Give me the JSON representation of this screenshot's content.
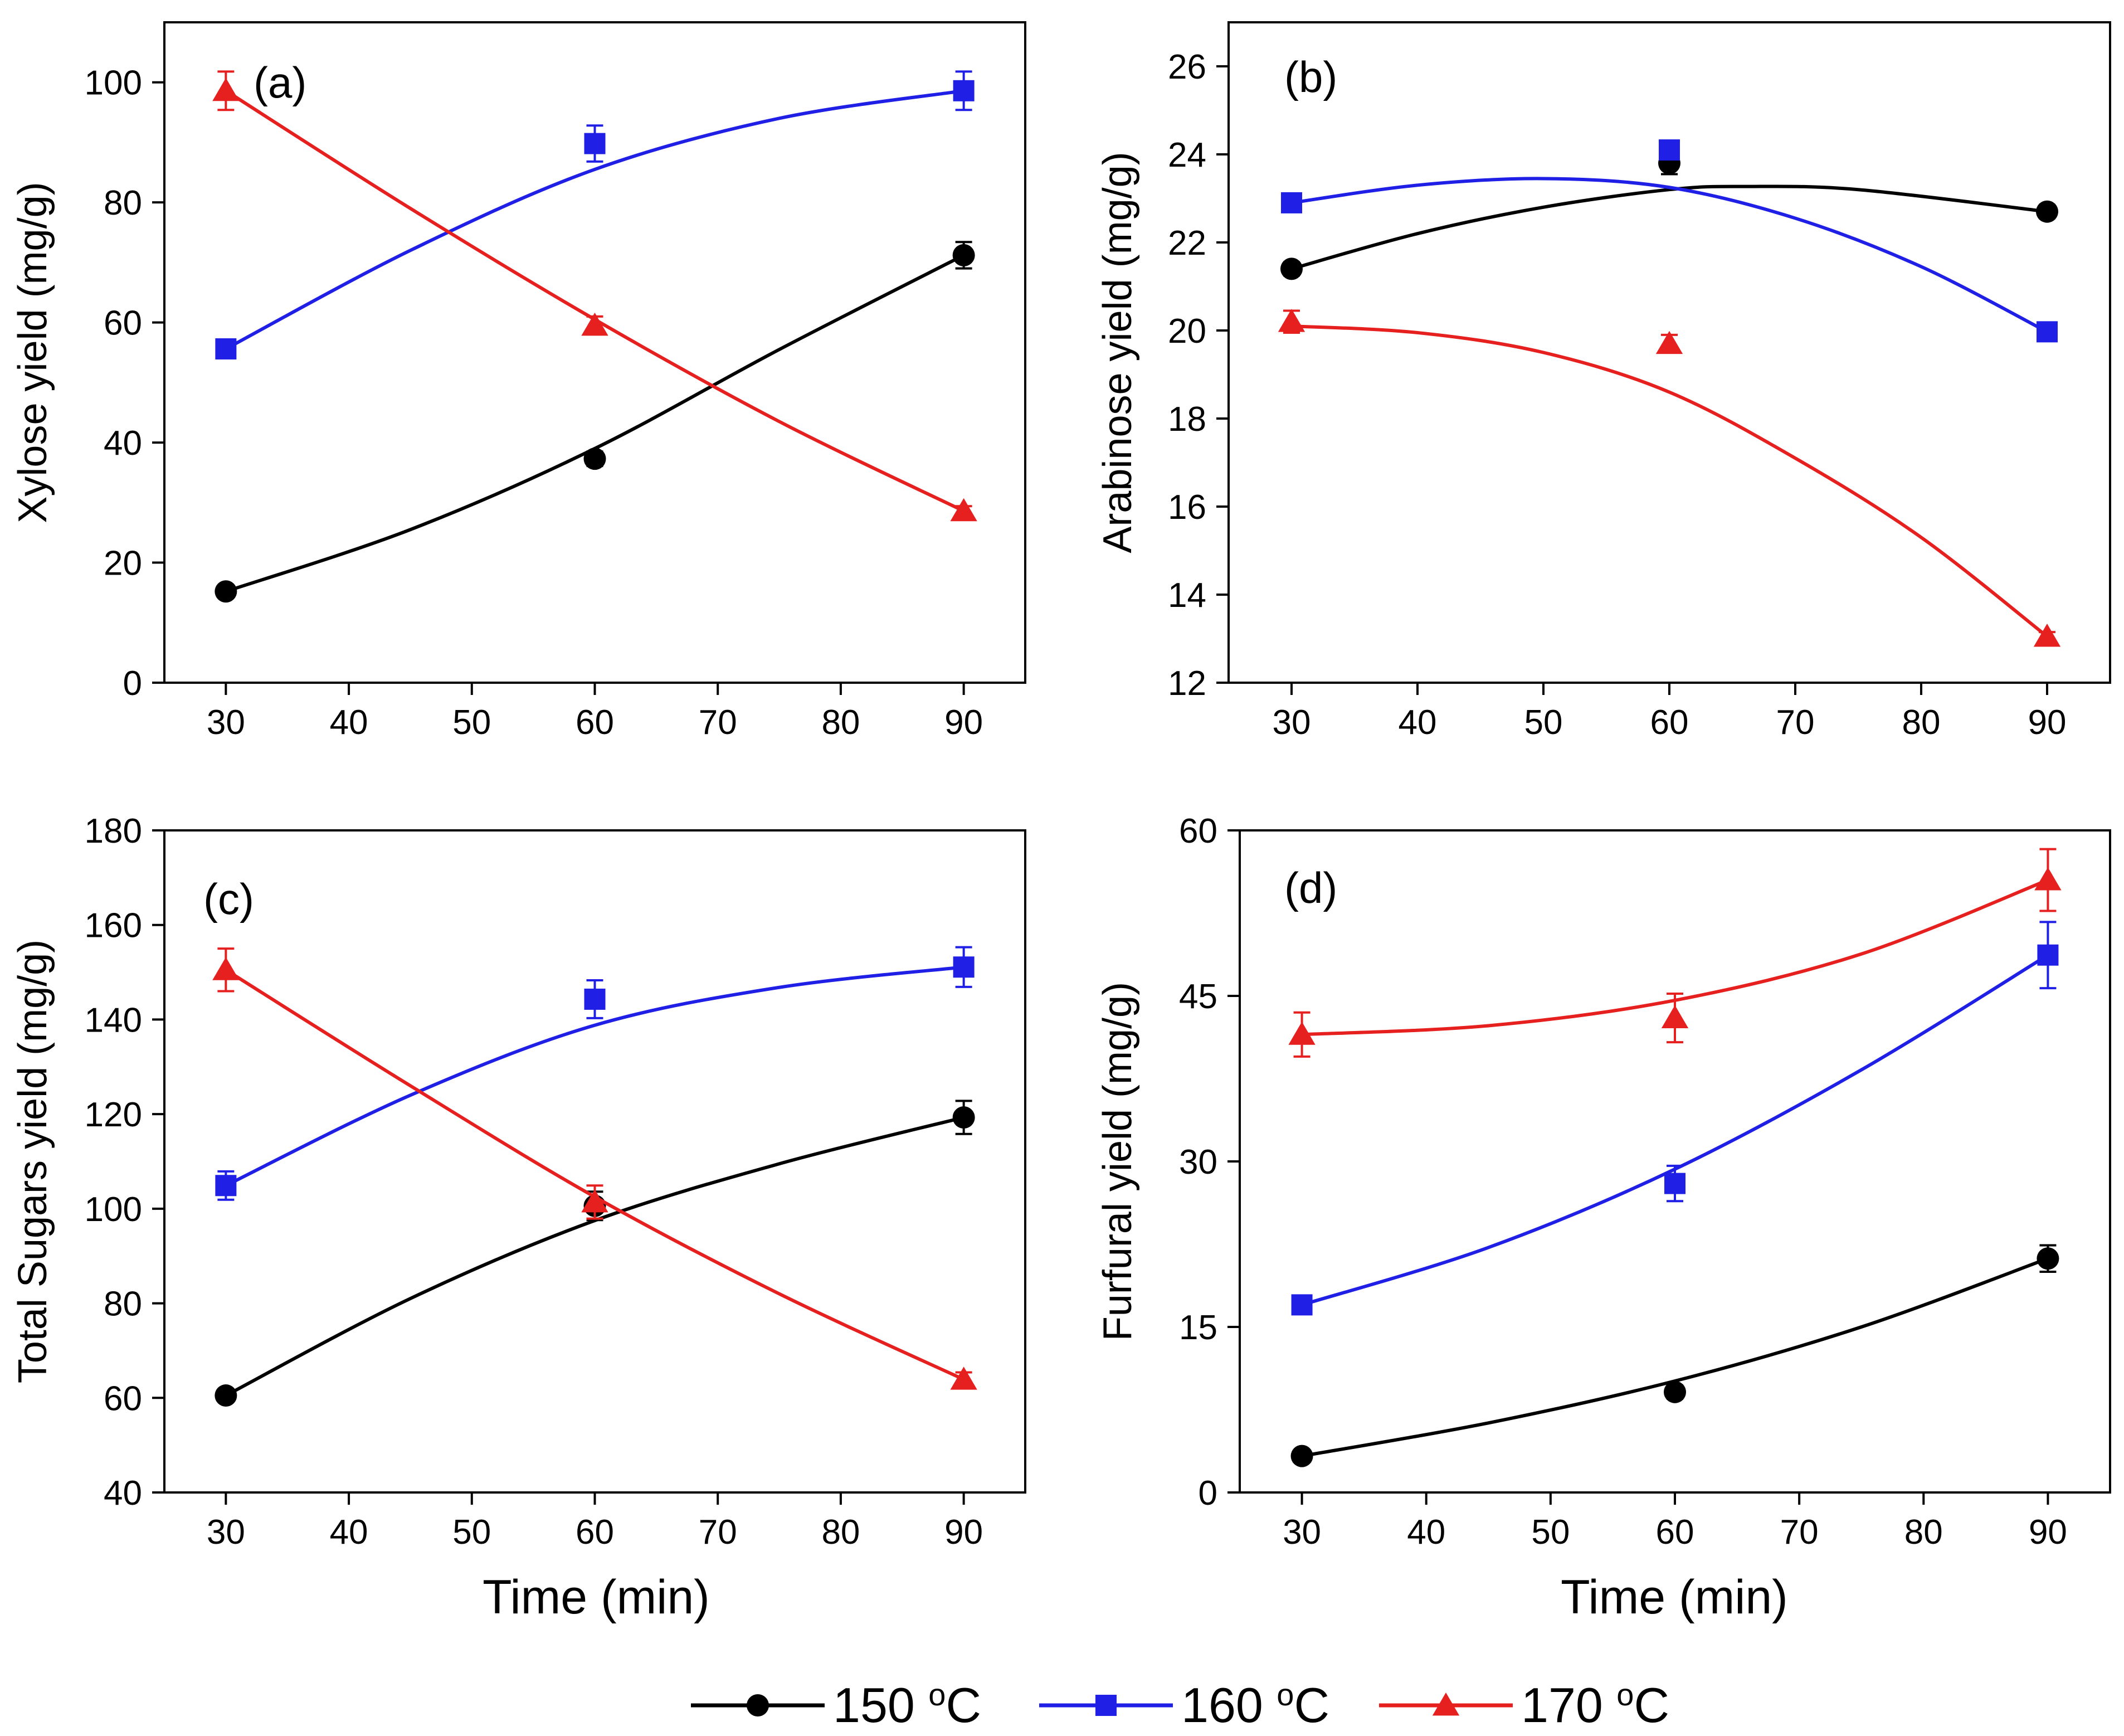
{
  "legend": {
    "items": [
      {
        "label": "150 ",
        "sup": "o",
        "unit": "C",
        "color": "#000000",
        "marker": "circle"
      },
      {
        "label": "160 ",
        "sup": "o",
        "unit": "C",
        "color": "#1f1fe6",
        "marker": "square"
      },
      {
        "label": "170 ",
        "sup": "o",
        "unit": "C",
        "color": "#e61f1f",
        "marker": "triangle"
      }
    ]
  },
  "chart_data": [
    {
      "type": "line",
      "panel_label": "(a)",
      "title": "",
      "xlabel": "",
      "ylabel": "Xylose yield (mg/g)",
      "xlim": [
        25,
        95
      ],
      "ylim": [
        0,
        110
      ],
      "xticks": [
        30,
        40,
        50,
        60,
        70,
        80,
        90
      ],
      "yticks": [
        0,
        20,
        40,
        60,
        80,
        100
      ],
      "x": [
        30,
        60,
        90
      ],
      "series": [
        {
          "name": "150 oC",
          "color": "#000000",
          "marker": "circle",
          "values": [
            15.2,
            37.3,
            71.2
          ],
          "errors": [
            1.0,
            1.2,
            2.2
          ],
          "fit": [
            [
              30,
              15.2
            ],
            [
              45,
              25.5
            ],
            [
              60,
              39.0
            ],
            [
              75,
              55.5
            ],
            [
              90,
              71.2
            ]
          ]
        },
        {
          "name": "160 oC",
          "color": "#1f1fe6",
          "marker": "square",
          "values": [
            55.6,
            89.8,
            98.6
          ],
          "errors": [
            1.2,
            3.0,
            3.2
          ],
          "fit": [
            [
              30,
              55.6
            ],
            [
              45,
              72.0
            ],
            [
              60,
              85.5
            ],
            [
              75,
              94.0
            ],
            [
              90,
              98.6
            ]
          ]
        },
        {
          "name": "170 oC",
          "color": "#e61f1f",
          "marker": "triangle",
          "values": [
            98.6,
            59.5,
            28.6
          ],
          "errors": [
            3.2,
            1.5,
            0.8
          ],
          "fit": [
            [
              30,
              98.6
            ],
            [
              45,
              79.0
            ],
            [
              60,
              60.5
            ],
            [
              75,
              43.5
            ],
            [
              90,
              28.6
            ]
          ]
        }
      ]
    },
    {
      "type": "line",
      "panel_label": "(b)",
      "title": "",
      "xlabel": "",
      "ylabel": "Arabinose yield (mg/g)",
      "xlim": [
        25,
        95
      ],
      "ylim": [
        12,
        27
      ],
      "xticks": [
        30,
        40,
        50,
        60,
        70,
        80,
        90
      ],
      "yticks": [
        12,
        14,
        16,
        18,
        20,
        22,
        24,
        26
      ],
      "x": [
        30,
        60,
        90
      ],
      "series": [
        {
          "name": "150 oC",
          "color": "#000000",
          "marker": "circle",
          "values": [
            21.4,
            23.8,
            22.7
          ],
          "errors": [
            0.15,
            0.25,
            0.15
          ],
          "fit": [
            [
              30,
              21.4
            ],
            [
              40,
              22.2
            ],
            [
              50,
              22.8
            ],
            [
              60,
              23.2
            ],
            [
              66,
              23.27
            ],
            [
              75,
              23.2
            ],
            [
              90,
              22.7
            ]
          ]
        },
        {
          "name": "160 oC",
          "color": "#1f1fe6",
          "marker": "square",
          "values": [
            22.9,
            24.1,
            19.97
          ],
          "errors": [
            0.15,
            0.15,
            0.1
          ],
          "fit": [
            [
              30,
              22.9
            ],
            [
              40,
              23.3
            ],
            [
              50,
              23.45
            ],
            [
              60,
              23.25
            ],
            [
              70,
              22.55
            ],
            [
              80,
              21.45
            ],
            [
              90,
              19.97
            ]
          ]
        },
        {
          "name": "170 oC",
          "color": "#e61f1f",
          "marker": "triangle",
          "values": [
            20.2,
            19.7,
            13.05
          ],
          "errors": [
            0.25,
            0.2,
            0.1
          ],
          "fit": [
            [
              30,
              20.1
            ],
            [
              40,
              19.95
            ],
            [
              50,
              19.5
            ],
            [
              60,
              18.6
            ],
            [
              70,
              17.1
            ],
            [
              80,
              15.3
            ],
            [
              90,
              13.05
            ]
          ]
        }
      ]
    },
    {
      "type": "line",
      "panel_label": "(c)",
      "title": "",
      "xlabel": "Time (min)",
      "ylabel": "Total Sugars yield (mg/g)",
      "xlim": [
        25,
        95
      ],
      "ylim": [
        40,
        180
      ],
      "xticks": [
        30,
        40,
        50,
        60,
        70,
        80,
        90
      ],
      "yticks": [
        40,
        60,
        80,
        100,
        120,
        140,
        160,
        180
      ],
      "x": [
        30,
        60,
        90
      ],
      "series": [
        {
          "name": "150 oC",
          "color": "#000000",
          "marker": "circle",
          "values": [
            60.5,
            100.6,
            119.3
          ],
          "errors": [
            1.2,
            3.0,
            3.5
          ],
          "fit": [
            [
              30,
              60.5
            ],
            [
              45,
              81.0
            ],
            [
              60,
              97.5
            ],
            [
              75,
              109.5
            ],
            [
              90,
              119.3
            ]
          ]
        },
        {
          "name": "160 oC",
          "color": "#1f1fe6",
          "marker": "square",
          "values": [
            104.9,
            144.3,
            151.1
          ],
          "errors": [
            3.0,
            4.0,
            4.2
          ],
          "fit": [
            [
              30,
              104.9
            ],
            [
              45,
              124.0
            ],
            [
              60,
              138.8
            ],
            [
              75,
              146.8
            ],
            [
              90,
              151.1
            ]
          ]
        },
        {
          "name": "170 oC",
          "color": "#e61f1f",
          "marker": "triangle",
          "values": [
            150.5,
            101.4,
            63.9
          ],
          "errors": [
            4.5,
            3.5,
            1.5
          ],
          "fit": [
            [
              30,
              150.5
            ],
            [
              45,
              126.0
            ],
            [
              60,
              102.5
            ],
            [
              75,
              82.0
            ],
            [
              90,
              63.9
            ]
          ]
        }
      ]
    },
    {
      "type": "line",
      "panel_label": "(d)",
      "title": "",
      "xlabel": "Time (min)",
      "ylabel": "Furfural yield (mg/g)",
      "xlim": [
        25,
        95
      ],
      "ylim": [
        0,
        60
      ],
      "xticks": [
        30,
        40,
        50,
        60,
        70,
        80,
        90
      ],
      "yticks": [
        0,
        15,
        30,
        45,
        60
      ],
      "x": [
        30,
        60,
        90
      ],
      "series": [
        {
          "name": "150 oC",
          "color": "#000000",
          "marker": "circle",
          "values": [
            3.3,
            9.1,
            21.2
          ],
          "errors": [
            0.4,
            0.6,
            1.2
          ],
          "fit": [
            [
              30,
              3.3
            ],
            [
              45,
              6.3
            ],
            [
              60,
              10.1
            ],
            [
              75,
              15.0
            ],
            [
              90,
              21.2
            ]
          ]
        },
        {
          "name": "160 oC",
          "color": "#1f1fe6",
          "marker": "square",
          "values": [
            17.0,
            28.0,
            48.7
          ],
          "errors": [
            0.8,
            1.6,
            3.0
          ],
          "fit": [
            [
              30,
              17.0
            ],
            [
              45,
              22.2
            ],
            [
              60,
              29.3
            ],
            [
              75,
              38.3
            ],
            [
              90,
              48.7
            ]
          ]
        },
        {
          "name": "170 oC",
          "color": "#e61f1f",
          "marker": "triangle",
          "values": [
            41.5,
            43.0,
            55.5
          ],
          "errors": [
            2.0,
            2.2,
            2.8
          ],
          "fit": [
            [
              30,
              41.5
            ],
            [
              45,
              42.3
            ],
            [
              60,
              44.6
            ],
            [
              75,
              48.8
            ],
            [
              90,
              55.5
            ]
          ]
        }
      ]
    }
  ]
}
